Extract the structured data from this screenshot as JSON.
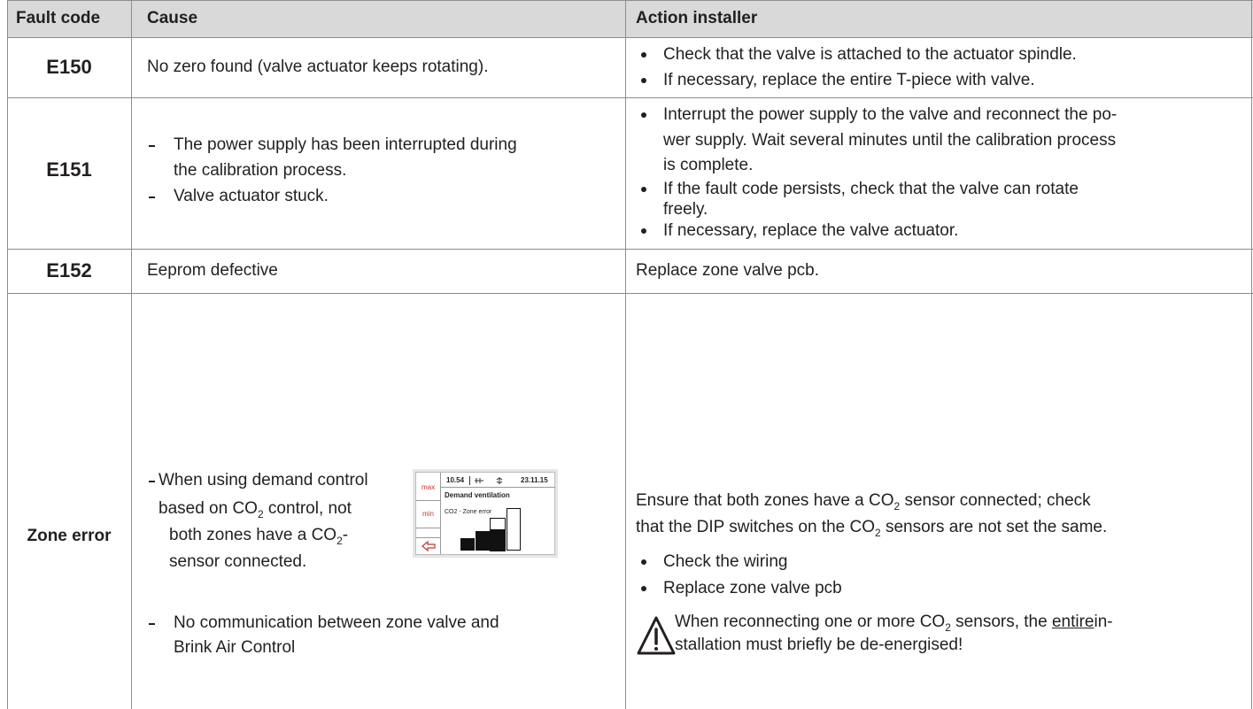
{
  "header": {
    "fault_code": "Fault code",
    "cause": "Cause",
    "action": "Action installer"
  },
  "rows": [
    {
      "code": "E150",
      "cause": [
        "No zero found (valve actuator keeps rotating)."
      ],
      "action": {
        "bullets": [
          [
            "Check that the valve is attached to the actuator spindle."
          ],
          [
            "If necessary, replace the entire T-piece with valve."
          ]
        ]
      }
    },
    {
      "code": "E151",
      "cause": {
        "items": [
          [
            "The power supply has been interrupted during",
            "the calibration process."
          ],
          [
            "Valve actuator stuck."
          ]
        ]
      },
      "action": {
        "bullets": [
          [
            "Interrupt the power supply to the valve and reconnect the po-",
            "wer supply. Wait several minutes until the calibration process",
            "is complete."
          ],
          [
            "If the fault code persists, check that the valve can rotate",
            "freely."
          ],
          [
            "If necessary, replace the valve actuator."
          ]
        ]
      }
    },
    {
      "code": "E152",
      "cause": [
        "Eeprom defective"
      ],
      "action": [
        "Replace zone valve pcb."
      ]
    },
    {
      "code": "Zone error",
      "cause": {
        "items": [
          [
            "When using demand control",
            [
              "based on CO",
              "2",
              " control, not"
            ],
            [
              "both zones have a CO",
              "2",
              "-"
            ],
            "sensor connected."
          ],
          [
            "No communication between zone valve and",
            "Brink Air Control"
          ]
        ],
        "display": {
          "max": "max",
          "min": "min",
          "time": "10.54",
          "date": "23.11.15",
          "title": "Demand ventilation",
          "status": "CO2  -  Zone error"
        }
      },
      "action": {
        "paragraph": [
          [
            "Ensure that both zones have a CO",
            "2",
            " sensor connected; check"
          ],
          [
            "that the DIP switches on the CO",
            "2",
            " sensors are not set the same."
          ]
        ],
        "bullets": [
          "Check the wiring",
          "Replace zone valve pcb"
        ],
        "warning": [
          [
            "When reconnecting one or more CO",
            "2",
            " sensors, the ",
            "entire",
            "in-"
          ],
          "stallation must briefly be de-energised!"
        ]
      }
    }
  ]
}
